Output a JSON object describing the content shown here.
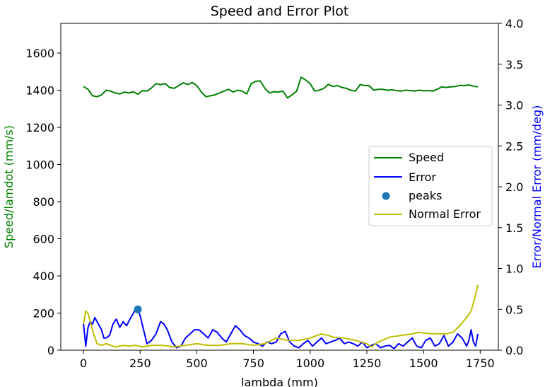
{
  "chart_data": {
    "type": "line",
    "title": "Speed and Error Plot",
    "xlabel": "lambda (mm)",
    "ylabel_left": "Speed/lamdot (mm/s)",
    "ylabel_right": "Error/Normal Error (mm/deg)",
    "xlim": [
      -100,
      1830
    ],
    "ylim_left": [
      0,
      1760
    ],
    "ylim_right": [
      0,
      4.0
    ],
    "x_ticks": [
      0,
      250,
      500,
      750,
      1000,
      1250,
      1500,
      1750
    ],
    "y_left_ticks": [
      0,
      200,
      400,
      600,
      800,
      1000,
      1200,
      1400,
      1600
    ],
    "y_right_ticks": [
      0.0,
      0.5,
      1.0,
      1.5,
      2.0,
      2.5,
      3.0,
      3.5,
      4.0
    ],
    "grid": false,
    "legend_position": "center-right",
    "colors": {
      "speed": "#008000",
      "error": "#0000ff",
      "peaks": "#1f77b4",
      "normal_error": "#bfbf00",
      "left_label": "#008000",
      "right_label": "#0000ff"
    },
    "series": [
      {
        "name": "Speed",
        "axis": "left",
        "type": "line",
        "x": [
          0,
          20,
          40,
          60,
          80,
          100,
          120,
          140,
          160,
          180,
          200,
          220,
          240,
          260,
          280,
          300,
          320,
          340,
          360,
          380,
          400,
          420,
          440,
          460,
          480,
          500,
          520,
          540,
          560,
          580,
          600,
          620,
          640,
          660,
          680,
          700,
          720,
          740,
          760,
          780,
          800,
          820,
          840,
          860,
          880,
          900,
          920,
          940,
          960,
          980,
          1000,
          1020,
          1040,
          1060,
          1080,
          1100,
          1120,
          1140,
          1160,
          1180,
          1200,
          1220,
          1240,
          1260,
          1280,
          1300,
          1320,
          1340,
          1360,
          1380,
          1400,
          1420,
          1440,
          1460,
          1480,
          1500,
          1520,
          1540,
          1560,
          1580,
          1600,
          1620,
          1640,
          1660,
          1680,
          1700,
          1720,
          1740
        ],
        "values": [
          1420,
          1405,
          1370,
          1365,
          1375,
          1400,
          1395,
          1385,
          1380,
          1390,
          1385,
          1392,
          1378,
          1398,
          1395,
          1412,
          1435,
          1430,
          1436,
          1415,
          1410,
          1425,
          1440,
          1430,
          1442,
          1425,
          1390,
          1365,
          1370,
          1375,
          1385,
          1395,
          1405,
          1390,
          1400,
          1395,
          1380,
          1435,
          1448,
          1450,
          1410,
          1385,
          1392,
          1390,
          1395,
          1358,
          1375,
          1395,
          1470,
          1455,
          1435,
          1395,
          1400,
          1410,
          1432,
          1420,
          1425,
          1415,
          1410,
          1400,
          1395,
          1430,
          1425,
          1425,
          1400,
          1405,
          1405,
          1400,
          1402,
          1398,
          1395,
          1400,
          1398,
          1396,
          1400,
          1397,
          1398,
          1395,
          1405,
          1418,
          1415,
          1418,
          1420,
          1426,
          1425,
          1428,
          1422,
          1418
        ]
      },
      {
        "name": "Error",
        "axis": "right",
        "type": "line",
        "x": [
          0,
          10,
          20,
          30,
          40,
          50,
          60,
          70,
          80,
          90,
          100,
          115,
          130,
          145,
          160,
          175,
          190,
          205,
          220,
          232,
          240,
          250,
          265,
          280,
          300,
          320,
          340,
          355,
          370,
          390,
          410,
          430,
          450,
          470,
          490,
          510,
          530,
          550,
          570,
          590,
          610,
          630,
          650,
          670,
          690,
          710,
          730,
          750,
          770,
          790,
          810,
          830,
          850,
          870,
          890,
          910,
          930,
          950,
          970,
          990,
          1010,
          1030,
          1050,
          1070,
          1090,
          1110,
          1130,
          1150,
          1170,
          1190,
          1210,
          1230,
          1250,
          1270,
          1290,
          1310,
          1330,
          1350,
          1370,
          1390,
          1410,
          1430,
          1450,
          1470,
          1490,
          1510,
          1530,
          1550,
          1570,
          1590,
          1610,
          1630,
          1650,
          1670,
          1690,
          1700,
          1710,
          1720,
          1730,
          1740
        ],
        "values": [
          0.33,
          0.05,
          0.28,
          0.35,
          0.32,
          0.4,
          0.35,
          0.3,
          0.25,
          0.15,
          0.15,
          0.18,
          0.32,
          0.38,
          0.28,
          0.35,
          0.3,
          0.38,
          0.45,
          0.52,
          0.5,
          0.42,
          0.25,
          0.08,
          0.12,
          0.2,
          0.35,
          0.32,
          0.25,
          0.1,
          0.03,
          0.05,
          0.15,
          0.2,
          0.25,
          0.25,
          0.2,
          0.15,
          0.25,
          0.22,
          0.15,
          0.1,
          0.2,
          0.3,
          0.25,
          0.18,
          0.15,
          0.1,
          0.08,
          0.05,
          0.1,
          0.08,
          0.1,
          0.2,
          0.23,
          0.1,
          0.05,
          0.03,
          0.08,
          0.12,
          0.05,
          0.1,
          0.15,
          0.08,
          0.1,
          0.12,
          0.15,
          0.08,
          0.1,
          0.08,
          0.05,
          0.1,
          0.03,
          0.06,
          0.08,
          0.03,
          0.05,
          0.06,
          0.02,
          0.08,
          0.05,
          0.1,
          0.15,
          0.05,
          0.03,
          0.12,
          0.15,
          0.05,
          0.08,
          0.18,
          0.05,
          0.1,
          0.2,
          0.15,
          0.05,
          0.12,
          0.25,
          0.1,
          0.05,
          0.2
        ]
      },
      {
        "name": "peaks",
        "axis": "right",
        "type": "scatter",
        "x": [
          240
        ],
        "values": [
          0.5
        ]
      },
      {
        "name": "Normal Error",
        "axis": "right",
        "type": "line",
        "x": [
          0,
          10,
          20,
          30,
          45,
          60,
          80,
          100,
          120,
          140,
          160,
          180,
          200,
          230,
          260,
          300,
          350,
          400,
          450,
          500,
          550,
          600,
          650,
          700,
          750,
          800,
          850,
          900,
          950,
          1000,
          1030,
          1050,
          1080,
          1100,
          1150,
          1200,
          1250,
          1270,
          1300,
          1350,
          1400,
          1450,
          1480,
          1500,
          1550,
          1600,
          1630,
          1660,
          1690,
          1710,
          1730,
          1740
        ],
        "values": [
          0.32,
          0.48,
          0.45,
          0.35,
          0.2,
          0.08,
          0.06,
          0.08,
          0.06,
          0.04,
          0.05,
          0.06,
          0.05,
          0.06,
          0.04,
          0.06,
          0.06,
          0.04,
          0.06,
          0.08,
          0.06,
          0.06,
          0.08,
          0.08,
          0.06,
          0.08,
          0.15,
          0.12,
          0.12,
          0.15,
          0.18,
          0.2,
          0.18,
          0.16,
          0.15,
          0.12,
          0.08,
          0.04,
          0.1,
          0.16,
          0.18,
          0.2,
          0.22,
          0.21,
          0.2,
          0.2,
          0.22,
          0.3,
          0.4,
          0.48,
          0.68,
          0.8
        ]
      }
    ]
  }
}
